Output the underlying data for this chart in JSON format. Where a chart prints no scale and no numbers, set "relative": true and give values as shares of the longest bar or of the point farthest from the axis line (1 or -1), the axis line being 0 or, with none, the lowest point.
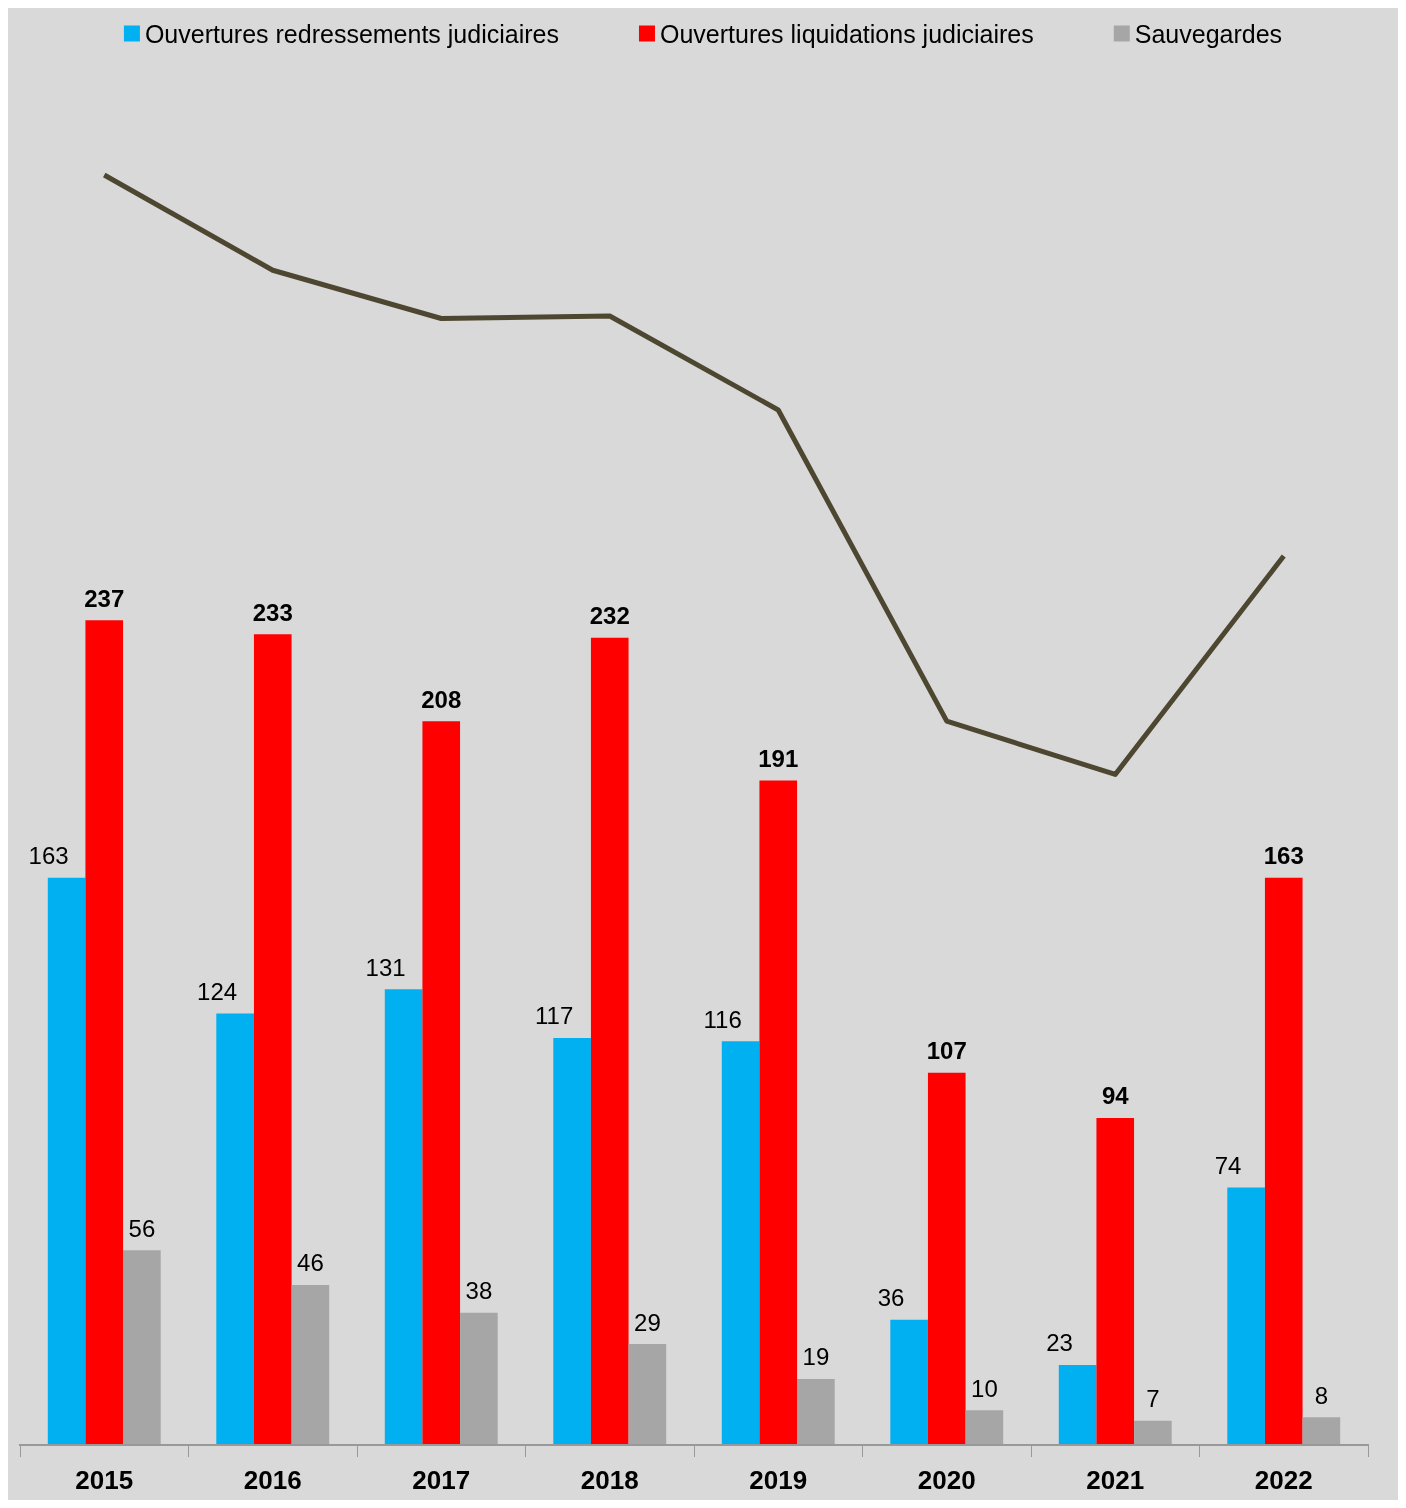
{
  "chart_data": [
    {
      "type": "bar",
      "categories": [
        "2015",
        "2016",
        "2017",
        "2018",
        "2019",
        "2020",
        "2021",
        "2022"
      ],
      "series": [
        {
          "name": "Ouvertures redressements judiciaires",
          "color": "#00b0f0",
          "values": [
            163,
            124,
            131,
            117,
            116,
            36,
            23,
            74
          ]
        },
        {
          "name": "Ouvertures liquidations judiciaires",
          "color": "#ff0000",
          "values": [
            237,
            233,
            208,
            232,
            191,
            107,
            94,
            163
          ]
        },
        {
          "name": "Sauvegardes",
          "color": "#a6a6a6",
          "values": [
            56,
            46,
            38,
            29,
            19,
            10,
            7,
            8
          ]
        }
      ],
      "data_labels": true,
      "legend": "top",
      "grid": false
    },
    {
      "type": "line",
      "categories": [
        null,
        null,
        null,
        null,
        null,
        null,
        null,
        null
      ],
      "relative": true,
      "series": [
        {
          "color": "#4d4630",
          "values": [
            1.0,
            0.925,
            0.887,
            0.889,
            0.815,
            0.57,
            0.528,
            0.7
          ]
        }
      ]
    }
  ]
}
